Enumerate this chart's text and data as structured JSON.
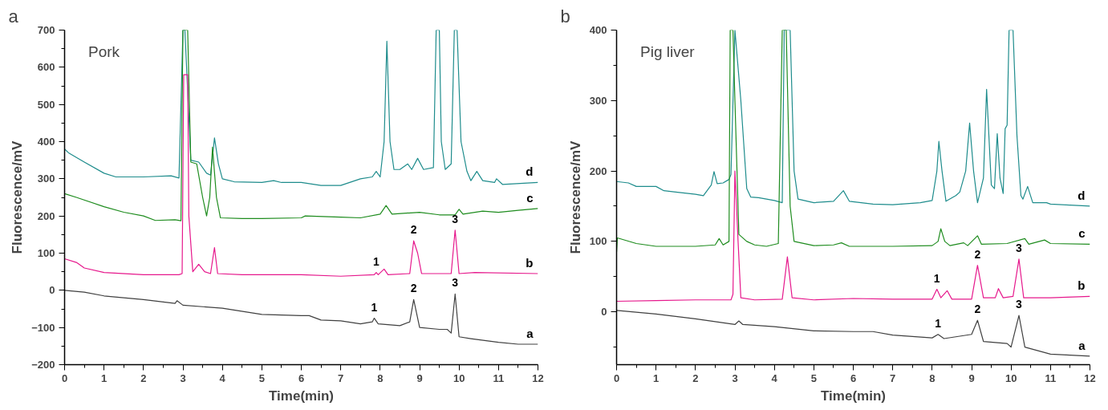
{
  "chart_data": [
    {
      "type": "line",
      "title": "Pork",
      "xlabel": "Time(min)",
      "ylabel": "Fluorescence/mV",
      "xlim": [
        0,
        12
      ],
      "ylim": [
        -200,
        700
      ],
      "xticks": [
        0,
        1,
        2,
        3,
        4,
        5,
        6,
        7,
        8,
        9,
        10,
        11,
        12
      ],
      "yticks": [
        -200,
        -100,
        0,
        100,
        200,
        300,
        400,
        500,
        600,
        700
      ],
      "grid": false,
      "annotations": [
        "a",
        {
          "text": "1",
          "x": 7.85,
          "y": -75
        },
        {
          "text": "2",
          "x": 8.85,
          "y": -25
        },
        {
          "text": "3",
          "x": 9.9,
          "y": -10
        },
        {
          "text": "1",
          "x": 7.9,
          "y": 48
        },
        {
          "text": "2",
          "x": 8.85,
          "y": 133
        },
        {
          "text": "3",
          "x": 9.9,
          "y": 162
        }
      ],
      "series": [
        {
          "name": "d",
          "color": "#1e8c8c",
          "x": [
            0,
            0.1,
            0.5,
            1,
            1.3,
            2,
            2.7,
            2.9,
            3.0,
            3.05,
            3.2,
            3.4,
            3.6,
            3.7,
            3.8,
            3.9,
            4,
            4.3,
            5,
            5.3,
            5.5,
            6,
            6.5,
            7,
            7.5,
            7.8,
            7.9,
            8.0,
            8.1,
            8.17,
            8.25,
            8.35,
            8.5,
            8.7,
            8.8,
            8.95,
            9.1,
            9.35,
            9.42,
            9.5,
            9.55,
            9.65,
            9.8,
            9.88,
            9.95,
            10.05,
            10.2,
            10.3,
            10.45,
            10.6,
            10.9,
            10.95,
            11.1,
            12
          ],
          "values": [
            380,
            370,
            345,
            315,
            305,
            305,
            308,
            302,
            700,
            700,
            350,
            345,
            315,
            310,
            410,
            340,
            300,
            292,
            290,
            295,
            290,
            290,
            282,
            282,
            300,
            305,
            320,
            305,
            400,
            670,
            400,
            325,
            325,
            340,
            325,
            355,
            325,
            330,
            700,
            700,
            400,
            325,
            340,
            700,
            700,
            400,
            320,
            295,
            320,
            295,
            290,
            300,
            285,
            290
          ]
        },
        {
          "name": "c",
          "color": "#1e8c1e",
          "x": [
            0,
            0.3,
            1,
            1.5,
            2,
            2.3,
            2.8,
            2.95,
            3.0,
            3.12,
            3.2,
            3.35,
            3.5,
            3.6,
            3.68,
            3.75,
            3.85,
            3.95,
            4.5,
            5,
            6,
            6.1,
            7,
            7.5,
            8.0,
            8.15,
            8.3,
            9,
            9.5,
            9.9,
            10.0,
            10.1,
            10.6,
            11,
            11.5,
            12
          ],
          "values": [
            260,
            250,
            225,
            210,
            200,
            188,
            190,
            187,
            700,
            700,
            345,
            340,
            250,
            200,
            250,
            385,
            250,
            195,
            193,
            193,
            195,
            200,
            197,
            195,
            205,
            228,
            205,
            210,
            203,
            203,
            218,
            205,
            213,
            210,
            215,
            220
          ]
        },
        {
          "name": "b",
          "color": "#e6188c",
          "x": [
            0,
            0.3,
            0.5,
            1,
            2,
            2.9,
            2.98,
            3.02,
            3.12,
            3.15,
            3.25,
            3.4,
            3.55,
            3.7,
            3.8,
            3.88,
            4.5,
            6,
            7,
            7.85,
            7.9,
            7.95,
            8.1,
            8.2,
            8.75,
            8.85,
            8.95,
            9.05,
            9.8,
            9.9,
            10.0,
            10.4,
            12
          ],
          "values": [
            85,
            75,
            60,
            48,
            42,
            42,
            45,
            580,
            580,
            200,
            50,
            70,
            50,
            45,
            115,
            45,
            42,
            42,
            38,
            42,
            48,
            42,
            57,
            42,
            45,
            133,
            100,
            45,
            45,
            162,
            45,
            48,
            45
          ]
        },
        {
          "name": "a",
          "color": "#404040",
          "x": [
            0,
            0.5,
            1,
            2,
            2.8,
            2.85,
            3,
            4,
            5,
            6,
            6.2,
            6.5,
            7,
            7.5,
            7.8,
            7.85,
            7.95,
            8.5,
            8.75,
            8.85,
            9.0,
            9.5,
            9.7,
            9.8,
            9.9,
            10.0,
            10.3,
            11,
            11.5,
            12
          ],
          "values": [
            0,
            -5,
            -15,
            -25,
            -35,
            -28,
            -40,
            -48,
            -65,
            -68,
            -68,
            -80,
            -82,
            -90,
            -85,
            -75,
            -90,
            -95,
            -85,
            -25,
            -100,
            -105,
            -105,
            -115,
            -10,
            -125,
            -130,
            -140,
            -145,
            -145
          ]
        }
      ]
    },
    {
      "type": "line",
      "title": "Pig liver",
      "xlabel": "Time(min)",
      "ylabel": "Fluorescence/mV",
      "xlim": [
        0,
        12
      ],
      "ylim": [
        -75,
        400
      ],
      "xticks": [
        0,
        1,
        2,
        3,
        4,
        5,
        6,
        7,
        8,
        9,
        10,
        11,
        12
      ],
      "yticks": [
        0,
        100,
        200,
        300,
        400
      ],
      "grid": false,
      "annotations": [
        "b",
        {
          "text": "1",
          "x": 8.15,
          "y": -32
        },
        {
          "text": "2",
          "x": 9.15,
          "y": -12
        },
        {
          "text": "3",
          "x": 10.2,
          "y": -5
        },
        {
          "text": "1",
          "x": 8.12,
          "y": 32
        },
        {
          "text": "2",
          "x": 9.15,
          "y": 66
        },
        {
          "text": "3",
          "x": 10.2,
          "y": 75
        }
      ],
      "series": [
        {
          "name": "d",
          "color": "#1e8c8c",
          "x": [
            0,
            0.3,
            0.5,
            1,
            1.2,
            1.5,
            2,
            2.2,
            2.4,
            2.47,
            2.55,
            2.7,
            2.85,
            2.9,
            3.0,
            3.15,
            3.3,
            3.4,
            3.6,
            4.0,
            4.2,
            4.25,
            4.4,
            4.5,
            4.6,
            5,
            5.5,
            5.75,
            5.9,
            6.5,
            7,
            7.7,
            8.0,
            8.12,
            8.17,
            8.25,
            8.35,
            8.6,
            8.7,
            8.85,
            8.95,
            9.05,
            9.15,
            9.3,
            9.38,
            9.5,
            9.58,
            9.65,
            9.72,
            9.8,
            9.85,
            9.9,
            9.95,
            10.05,
            10.15,
            10.25,
            10.3,
            10.42,
            10.55,
            10.9,
            11,
            12
          ],
          "values": [
            185,
            183,
            178,
            178,
            172,
            170,
            167,
            165,
            180,
            199,
            182,
            183,
            188,
            195,
            400,
            300,
            175,
            163,
            162,
            158,
            155,
            400,
            400,
            200,
            160,
            155,
            157,
            172,
            157,
            153,
            152,
            155,
            158,
            200,
            242,
            200,
            157,
            165,
            170,
            200,
            268,
            200,
            155,
            190,
            316,
            180,
            175,
            253,
            190,
            168,
            260,
            265,
            400,
            400,
            250,
            165,
            160,
            178,
            155,
            155,
            153,
            150
          ]
        },
        {
          "name": "c",
          "color": "#1e8c1e",
          "x": [
            0,
            0.02,
            0.5,
            1,
            2,
            2.5,
            2.6,
            2.7,
            2.85,
            2.88,
            2.95,
            3.0,
            3.1,
            3.3,
            3.5,
            3.8,
            4.1,
            4.2,
            4.3,
            4.4,
            4.5,
            5,
            5.5,
            5.7,
            5.9,
            7,
            8,
            8.15,
            8.22,
            8.32,
            8.45,
            8.8,
            8.9,
            9.15,
            9.25,
            9.9,
            10.35,
            10.45,
            10.85,
            11,
            12
          ],
          "values": [
            85,
            105,
            97,
            93,
            93,
            95,
            104,
            95,
            100,
            400,
            400,
            300,
            110,
            100,
            95,
            93,
            97,
            400,
            400,
            150,
            100,
            94,
            95,
            98,
            93,
            93,
            94,
            100,
            118,
            100,
            94,
            98,
            94,
            108,
            96,
            97,
            104,
            96,
            102,
            97,
            96
          ]
        },
        {
          "name": "b",
          "color": "#e6188c",
          "x": [
            0,
            1,
            2,
            2.9,
            2.95,
            3.0,
            3.08,
            3.15,
            3.5,
            4.2,
            4.33,
            4.45,
            5,
            6,
            7,
            8,
            8.12,
            8.22,
            8.38,
            8.5,
            9.0,
            9.15,
            9.3,
            9.6,
            9.68,
            9.8,
            10.05,
            10.2,
            10.32,
            11,
            12
          ],
          "values": [
            15,
            16,
            17,
            17,
            25,
            200,
            100,
            20,
            17,
            18,
            78,
            20,
            17,
            19,
            18,
            18,
            32,
            20,
            30,
            18,
            18,
            66,
            20,
            20,
            33,
            20,
            22,
            75,
            20,
            20,
            22
          ]
        },
        {
          "name": "a",
          "color": "#404040",
          "x": [
            0,
            1,
            2,
            3,
            3.1,
            3.2,
            4,
            5,
            6,
            6.5,
            7,
            8,
            8.15,
            8.3,
            9,
            9.15,
            9.3,
            9.9,
            10.0,
            10.2,
            10.35,
            11,
            12
          ],
          "values": [
            2,
            -3,
            -10,
            -18,
            -13,
            -18,
            -21,
            -27,
            -28,
            -28,
            -33,
            -37,
            -32,
            -38,
            -32,
            -12,
            -42,
            -45,
            -50,
            -5,
            -50,
            -60,
            -63
          ]
        }
      ]
    }
  ]
}
